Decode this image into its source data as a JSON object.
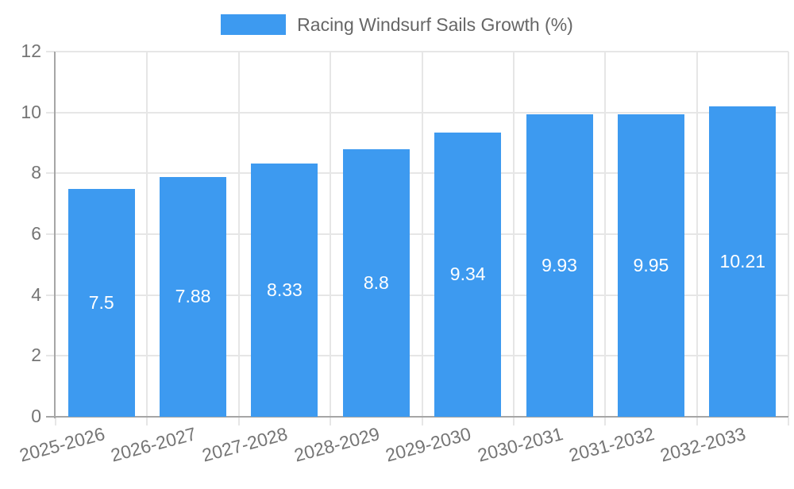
{
  "legend": {
    "label": "Racing Windsurf Sails Growth (%)"
  },
  "colors": {
    "bar": "#3D9AF0",
    "grid": "#E6E6E6",
    "axis": "#A6A6A6",
    "tick_text": "#757575",
    "legend_text": "#666666",
    "value_text": "#FFFFFF"
  },
  "chart_data": {
    "type": "bar",
    "title": "Racing Windsurf Sails Growth (%)",
    "categories": [
      "2025-2026",
      "2026-2027",
      "2027-2028",
      "2028-2029",
      "2029-2030",
      "2030-2031",
      "2031-2032",
      "2032-2033"
    ],
    "values": [
      7.5,
      7.88,
      8.33,
      8.8,
      9.34,
      9.93,
      9.95,
      10.21
    ],
    "value_labels": [
      "7.5",
      "7.88",
      "8.33",
      "8.8",
      "9.34",
      "9.93",
      "9.95",
      "10.21"
    ],
    "xlabel": "",
    "ylabel": "",
    "ylim": [
      0,
      12
    ],
    "yticks": [
      0,
      2,
      4,
      6,
      8,
      10,
      12
    ],
    "grid": true,
    "legend_position": "top",
    "bar_label_position": "center",
    "x_label_rotation_deg": -15
  }
}
